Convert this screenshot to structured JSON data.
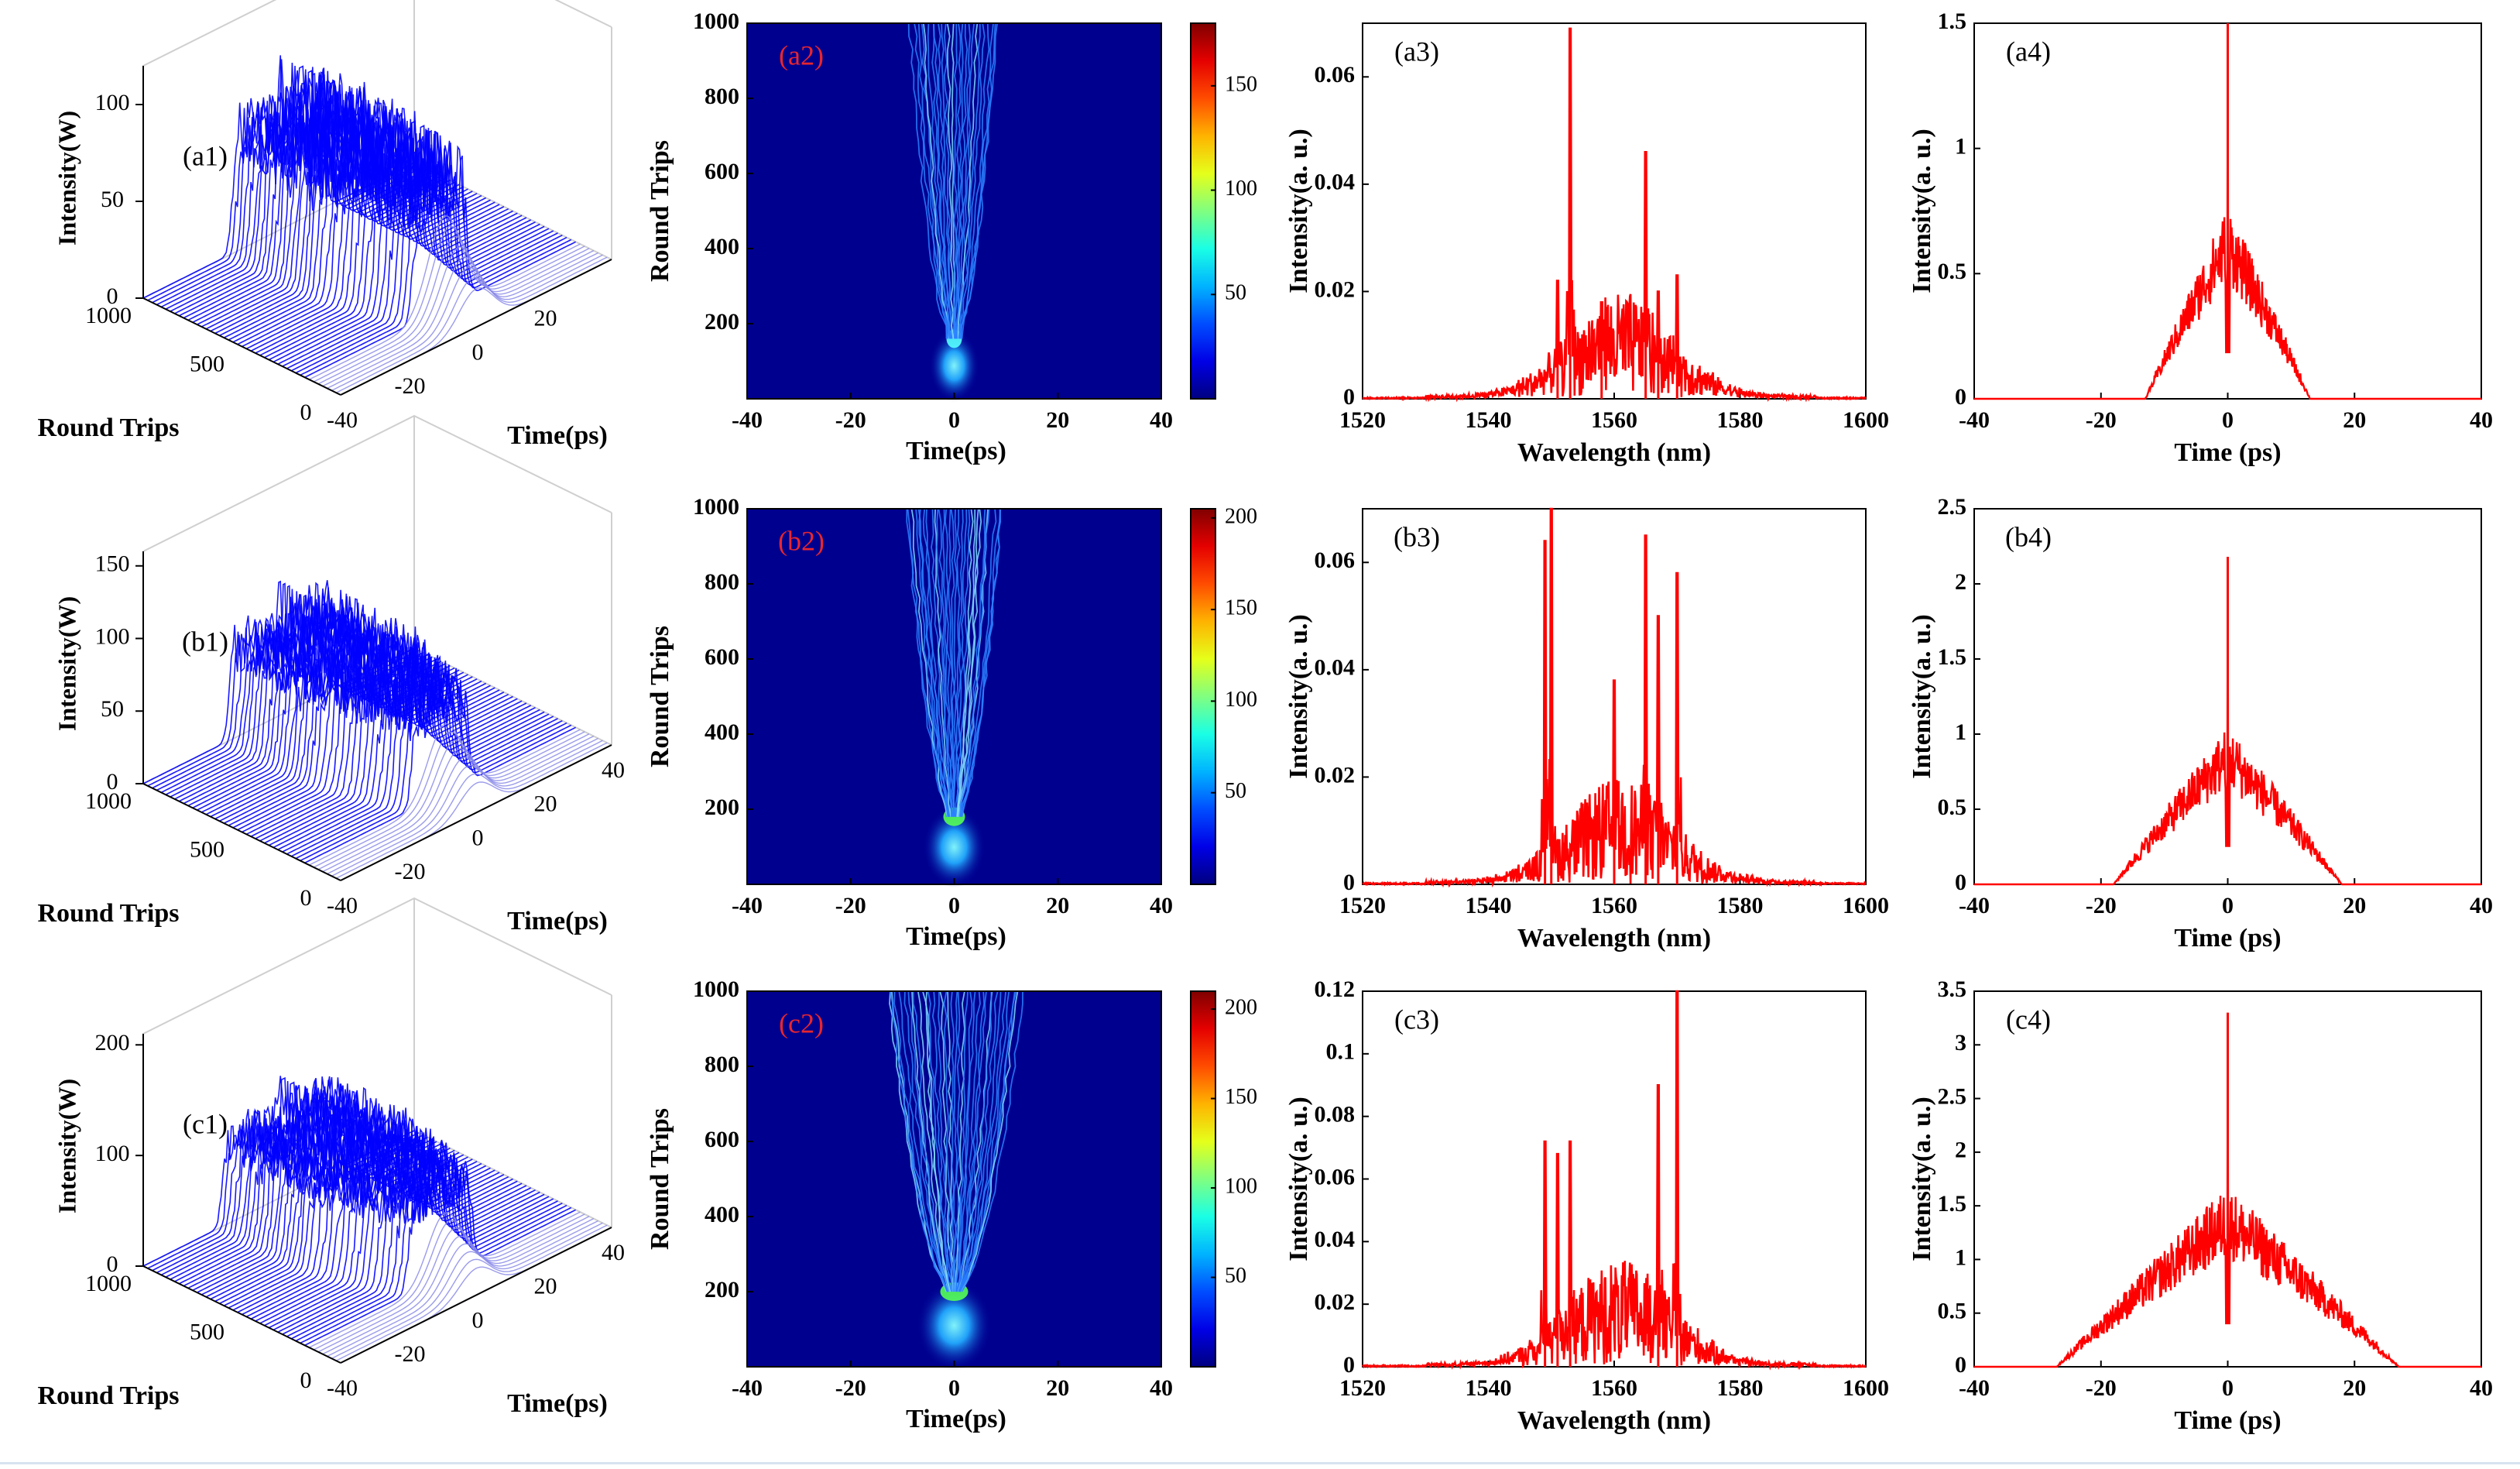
{
  "figure": {
    "name": "supercontinuum-evolution-figure"
  },
  "chart_data": {
    "rows": [
      {
        "id": "a",
        "panel3d": {
          "label": "(a1)",
          "type": "waterfall-3d",
          "zlabel": "Intensity(W)",
          "ylabel": "Round  Trips",
          "xlabel": "Time(ps)",
          "zticks": [
            "0",
            "50",
            "100"
          ],
          "zlim": [
            0,
            120
          ],
          "yticks": [
            "0",
            "500",
            "1000"
          ],
          "xticks": [
            "-40",
            "-20",
            "0",
            "20"
          ],
          "plateau_level": 78,
          "spike_peak": 90,
          "pulse_halfwidth_ps": 12,
          "color": "#0000ff"
        },
        "heatmap": {
          "label": "(a2)",
          "type": "heatmap",
          "xlabel": "Time(ps)",
          "ylabel": "Round  Trips",
          "xlim": [
            -40,
            40
          ],
          "ylim": [
            0,
            1000
          ],
          "xticks": [
            "-40",
            "-20",
            "0",
            "20",
            "40"
          ],
          "yticks": [
            "200",
            "400",
            "600",
            "800",
            "1000"
          ],
          "colorbar_ticks": [
            "50",
            "100",
            "150"
          ],
          "colorbar_max": 180,
          "breakup_round_trip": 160,
          "final_halfwidth_ps": 9
        },
        "spectrum": {
          "label": "(a3)",
          "type": "line",
          "xlabel": "Wavelength (nm)",
          "ylabel": "Intensity(a. u.)",
          "xlim": [
            1520,
            1600
          ],
          "ylim": [
            0,
            0.07
          ],
          "xticks": [
            "1520",
            "1540",
            "1560",
            "1580",
            "1600"
          ],
          "yticks": [
            "0",
            "0.02",
            "0.04",
            "0.06"
          ],
          "peaks": [
            {
              "x": 1551,
              "y": 0.022
            },
            {
              "x": 1553,
              "y": 0.069
            },
            {
              "x": 1558,
              "y": 0.018
            },
            {
              "x": 1565,
              "y": 0.046
            },
            {
              "x": 1567,
              "y": 0.02
            },
            {
              "x": 1570,
              "y": 0.023
            }
          ],
          "color": "#ff0000"
        },
        "temporal": {
          "label": "(a4)",
          "type": "line",
          "xlabel": "Time (ps)",
          "ylabel": "Intensity(a. u.)",
          "xlim": [
            -40,
            40
          ],
          "ylim": [
            0,
            1.5
          ],
          "xticks": [
            "-40",
            "-20",
            "0",
            "20",
            "40"
          ],
          "yticks": [
            "0",
            "0.5",
            "1",
            "1.5"
          ],
          "envelope_peak": 0.62,
          "envelope_halfwidth_ps": 13,
          "center_spike": 1.5,
          "color": "#ff0000"
        }
      },
      {
        "id": "b",
        "panel3d": {
          "label": "(b1)",
          "type": "waterfall-3d",
          "zlabel": "Intensity(W)",
          "ylabel": "Round  Trips",
          "xlabel": "Time(ps)",
          "zticks": [
            "0",
            "50",
            "100",
            "150"
          ],
          "zlim": [
            0,
            160
          ],
          "yticks": [
            "0",
            "500",
            "1000"
          ],
          "xticks": [
            "-40",
            "-20",
            "0",
            "20",
            "40"
          ],
          "plateau_level": 80,
          "spike_peak": 92,
          "pulse_halfwidth_ps": 13,
          "color": "#0000ff"
        },
        "heatmap": {
          "label": "(b2)",
          "type": "heatmap",
          "xlabel": "Time(ps)",
          "ylabel": "Round  Trips",
          "xlim": [
            -40,
            40
          ],
          "ylim": [
            0,
            1000
          ],
          "xticks": [
            "-40",
            "-20",
            "0",
            "20",
            "40"
          ],
          "yticks": [
            "200",
            "400",
            "600",
            "800",
            "1000"
          ],
          "colorbar_ticks": [
            "50",
            "100",
            "150",
            "200"
          ],
          "colorbar_max": 205,
          "breakup_round_trip": 180,
          "final_halfwidth_ps": 10
        },
        "spectrum": {
          "label": "(b3)",
          "type": "line",
          "xlabel": "Wavelength (nm)",
          "ylabel": "Intensity(a. u.)",
          "xlim": [
            1520,
            1600
          ],
          "ylim": [
            0,
            0.07
          ],
          "xticks": [
            "1520",
            "1540",
            "1560",
            "1580",
            "1600"
          ],
          "yticks": [
            "0",
            "0.02",
            "0.04",
            "0.06"
          ],
          "peaks": [
            {
              "x": 1549,
              "y": 0.064
            },
            {
              "x": 1550,
              "y": 0.07
            },
            {
              "x": 1560,
              "y": 0.038
            },
            {
              "x": 1565,
              "y": 0.065
            },
            {
              "x": 1567,
              "y": 0.05
            },
            {
              "x": 1570,
              "y": 0.058
            }
          ],
          "color": "#ff0000"
        },
        "temporal": {
          "label": "(b4)",
          "type": "line",
          "xlabel": "Time (ps)",
          "ylabel": "Intensity(a. u.)",
          "xlim": [
            -40,
            40
          ],
          "ylim": [
            0,
            2.5
          ],
          "xticks": [
            "-40",
            "-20",
            "0",
            "20",
            "40"
          ],
          "yticks": [
            "0",
            "0.5",
            "1",
            "1.5",
            "2",
            "2.5"
          ],
          "envelope_peak": 0.85,
          "envelope_halfwidth_ps": 18,
          "center_spike": 2.18,
          "color": "#ff0000"
        }
      },
      {
        "id": "c",
        "panel3d": {
          "label": "(c1)",
          "type": "waterfall-3d",
          "zlabel": "Intensity(W)",
          "ylabel": "Round  Trips",
          "xlabel": "Time(ps)",
          "zticks": [
            "0",
            "100",
            "200"
          ],
          "zlim": [
            0,
            210
          ],
          "yticks": [
            "0",
            "500",
            "1000"
          ],
          "xticks": [
            "-40",
            "-20",
            "0",
            "20",
            "40"
          ],
          "plateau_level": 95,
          "spike_peak": 110,
          "pulse_halfwidth_ps": 15,
          "color": "#0000ff"
        },
        "heatmap": {
          "label": "(c2)",
          "type": "heatmap",
          "xlabel": "Time(ps)",
          "ylabel": "Round  Trips",
          "xlim": [
            -40,
            40
          ],
          "ylim": [
            0,
            1000
          ],
          "xticks": [
            "-40",
            "-20",
            "0",
            "20",
            "40"
          ],
          "yticks": [
            "200",
            "400",
            "600",
            "800",
            "1000"
          ],
          "colorbar_ticks": [
            "50",
            "100",
            "150",
            "200"
          ],
          "colorbar_max": 210,
          "breakup_round_trip": 200,
          "final_halfwidth_ps": 14
        },
        "spectrum": {
          "label": "(c3)",
          "type": "line",
          "xlabel": "Wavelength (nm)",
          "ylabel": "Intensity(a. u.)",
          "xlim": [
            1520,
            1600
          ],
          "ylim": [
            0,
            0.12
          ],
          "xticks": [
            "1520",
            "1540",
            "1560",
            "1580",
            "1600"
          ],
          "yticks": [
            "0",
            "0.02",
            "0.04",
            "0.06",
            "0.08",
            "0.1",
            "0.12"
          ],
          "peaks": [
            {
              "x": 1549,
              "y": 0.072
            },
            {
              "x": 1551,
              "y": 0.068
            },
            {
              "x": 1553,
              "y": 0.072
            },
            {
              "x": 1567,
              "y": 0.09
            },
            {
              "x": 1570,
              "y": 0.12
            }
          ],
          "color": "#ff0000"
        },
        "temporal": {
          "label": "(c4)",
          "type": "line",
          "xlabel": "Time (ps)",
          "ylabel": "Intensity(a. u.)",
          "xlim": [
            -40,
            40
          ],
          "ylim": [
            0,
            3.5
          ],
          "xticks": [
            "-40",
            "-20",
            "0",
            "20",
            "40"
          ],
          "yticks": [
            "0",
            "0.5",
            "1",
            "1.5",
            "2",
            "2.5",
            "3",
            "3.5"
          ],
          "envelope_peak": 1.35,
          "envelope_halfwidth_ps": 27,
          "center_spike": 3.3,
          "color": "#ff0000"
        }
      }
    ]
  }
}
